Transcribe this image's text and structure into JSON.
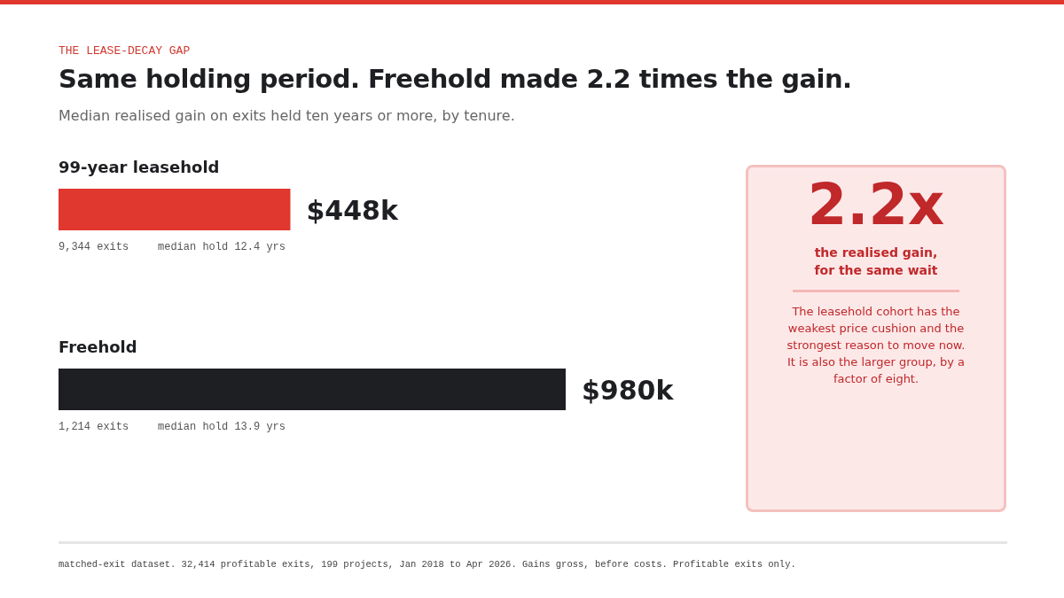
{
  "chart_data": {
    "type": "bar",
    "orientation": "horizontal",
    "title": "Same holding period. Freehold made 2.2 times the gain.",
    "subtitle": "Median realised gain on exits held ten years or more, by tenure.",
    "categories": [
      "99-year leasehold",
      "Freehold"
    ],
    "values": [
      448,
      980
    ],
    "colors": [
      "#e0372e",
      "#1e1f22"
    ],
    "value_labels": [
      "$448k",
      "$980k"
    ],
    "annotations": [
      "THE LEASE-DECAY GAP",
      "9,344 exits",
      "median hold 12.4 yrs",
      "1,214 exits",
      "median hold 13.9 yrs",
      "2.2x",
      "the realised gain,\nfor the same wait",
      "The leasehold cohort has the weakest price cushion and the strongest reason to move now. It is also the larger group, by a factor of eight.",
      "matched-exit dataset. 32,414 profitable exits, 199 projects, Jan 2018 to Apr 2026. Gains gross, before costs. Profitable exits only."
    ]
  }
}
